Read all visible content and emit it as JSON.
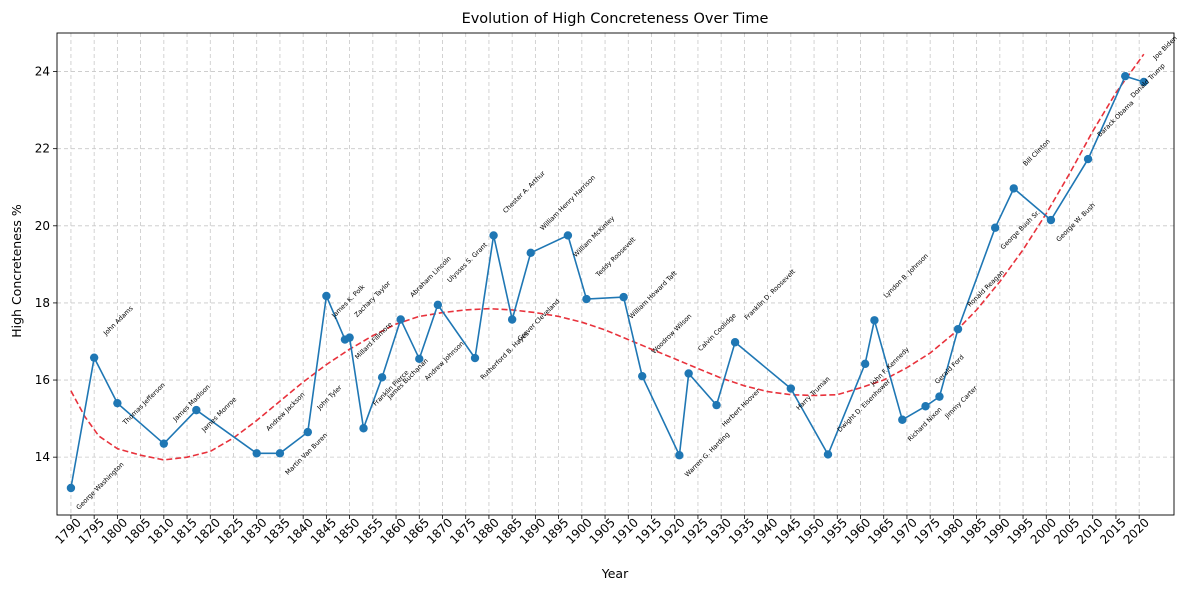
{
  "chart_data": {
    "type": "line",
    "title": "Evolution of High Concreteness Over Time",
    "xlabel": "Year",
    "ylabel": "High Concreteness %",
    "xlim": [
      1787,
      2027.5
    ],
    "ylim": [
      12.5,
      25
    ],
    "x_ticks": [
      1790,
      1795,
      1800,
      1805,
      1810,
      1815,
      1820,
      1825,
      1830,
      1835,
      1840,
      1845,
      1850,
      1855,
      1860,
      1865,
      1870,
      1875,
      1880,
      1885,
      1890,
      1895,
      1900,
      1905,
      1910,
      1915,
      1920,
      1925,
      1930,
      1935,
      1940,
      1945,
      1950,
      1955,
      1960,
      1965,
      1970,
      1975,
      1980,
      1985,
      1990,
      1995,
      2000,
      2005,
      2010,
      2015,
      2020
    ],
    "y_ticks": [
      14,
      16,
      18,
      20,
      22,
      24
    ],
    "grid": true,
    "colors": {
      "series": "#1f77b4",
      "trend": "#e8323c",
      "grid": "#c8c8c8"
    },
    "series": [
      {
        "style": "line-markers",
        "points": [
          {
            "x": 1790,
            "y": 13.2,
            "label": "George Washington"
          },
          {
            "x": 1795,
            "y": 16.58,
            "label": "John Adams"
          },
          {
            "x": 1800,
            "y": 15.4,
            "label": "Thomas Jefferson"
          },
          {
            "x": 1810,
            "y": 14.35,
            "label": "James Madison"
          },
          {
            "x": 1817,
            "y": 15.22,
            "label": "James Monroe"
          },
          {
            "x": 1830,
            "y": 14.1,
            "label": "Andrew Jackson"
          },
          {
            "x": 1835,
            "y": 14.1,
            "label": "Martin Van Buren"
          },
          {
            "x": 1841,
            "y": 14.65,
            "label": "John Tyler"
          },
          {
            "x": 1845,
            "y": 18.18,
            "label": "James K. Polk"
          },
          {
            "x": 1849,
            "y": 17.05,
            "label": "Zachary Taylor"
          },
          {
            "x": 1850,
            "y": 17.1,
            "label": "Millard Fillmore"
          },
          {
            "x": 1853,
            "y": 14.75,
            "label": "Franklin Pierce"
          },
          {
            "x": 1857,
            "y": 16.07,
            "label": "James Buchanan"
          },
          {
            "x": 1861,
            "y": 17.57,
            "label": "Abraham Lincoln"
          },
          {
            "x": 1865,
            "y": 16.55,
            "label": "Andrew Johnson"
          },
          {
            "x": 1869,
            "y": 17.95,
            "label": "Ulysses S. Grant"
          },
          {
            "x": 1877,
            "y": 16.57,
            "label": "Rutherford B. Hayes"
          },
          {
            "x": 1881,
            "y": 19.75,
            "label": "Chester A. Arthur"
          },
          {
            "x": 1885,
            "y": 17.57,
            "label": "Grover Cleveland"
          },
          {
            "x": 1889,
            "y": 19.3,
            "label": "William Henry Harrison"
          },
          {
            "x": 1897,
            "y": 19.75,
            "label": "William McKinley"
          },
          {
            "x": 1901,
            "y": 18.1,
            "label": "Teddy Roosevelt"
          },
          {
            "x": 1909,
            "y": 18.15,
            "label": "William Howard Taft"
          },
          {
            "x": 1913,
            "y": 16.1,
            "label": "Woodrow Wilson"
          },
          {
            "x": 1921,
            "y": 14.05,
            "label": "Warren G. Harding"
          },
          {
            "x": 1923,
            "y": 16.17,
            "label": "Calvin Coolidge"
          },
          {
            "x": 1929,
            "y": 15.35,
            "label": "Herbert Hoover"
          },
          {
            "x": 1933,
            "y": 16.98,
            "label": "Franklin D. Roosevelt"
          },
          {
            "x": 1945,
            "y": 15.78,
            "label": "Harry Truman"
          },
          {
            "x": 1953,
            "y": 14.07,
            "label": "Dwight D. Eisenhower"
          },
          {
            "x": 1961,
            "y": 16.42,
            "label": "John F. Kennedy"
          },
          {
            "x": 1963,
            "y": 17.55,
            "label": "Lyndon B. Johnson"
          },
          {
            "x": 1969,
            "y": 14.97,
            "label": "Richard Nixon"
          },
          {
            "x": 1974,
            "y": 15.32,
            "label": "Gerald Ford"
          },
          {
            "x": 1977,
            "y": 15.57,
            "label": "Jimmy Carter"
          },
          {
            "x": 1981,
            "y": 17.32,
            "label": "Ronald Reagan"
          },
          {
            "x": 1989,
            "y": 19.95,
            "label": "George Bush Sr."
          },
          {
            "x": 1993,
            "y": 20.97,
            "label": "Bill Clinton"
          },
          {
            "x": 2001,
            "y": 20.15,
            "label": "George W. Bush"
          },
          {
            "x": 2009,
            "y": 21.73,
            "label": "Barack Obama"
          },
          {
            "x": 2017,
            "y": 23.88,
            "label": "Donald Trump"
          },
          {
            "x": 2021,
            "y": 23.73,
            "label": "Joe Biden"
          }
        ]
      },
      {
        "style": "dashed-trend",
        "x": [
          1790,
          1793,
          1796,
          1800,
          1805,
          1810,
          1815,
          1820,
          1825,
          1830,
          1835,
          1840,
          1845,
          1850,
          1855,
          1860,
          1865,
          1870,
          1875,
          1880,
          1885,
          1890,
          1895,
          1900,
          1905,
          1910,
          1915,
          1920,
          1925,
          1930,
          1935,
          1940,
          1945,
          1950,
          1955,
          1960,
          1965,
          1970,
          1975,
          1980,
          1985,
          1990,
          1995,
          2000,
          2005,
          2010,
          2015,
          2021
        ],
        "y": [
          15.72,
          15.05,
          14.55,
          14.22,
          14.05,
          13.93,
          14.0,
          14.15,
          14.5,
          14.95,
          15.45,
          15.95,
          16.4,
          16.8,
          17.15,
          17.45,
          17.65,
          17.75,
          17.82,
          17.85,
          17.82,
          17.75,
          17.65,
          17.5,
          17.3,
          17.05,
          16.8,
          16.55,
          16.3,
          16.05,
          15.85,
          15.7,
          15.62,
          15.6,
          15.62,
          15.8,
          16.0,
          16.32,
          16.7,
          17.2,
          17.82,
          18.55,
          19.38,
          20.32,
          21.35,
          22.45,
          23.45,
          24.45
        ]
      }
    ]
  }
}
